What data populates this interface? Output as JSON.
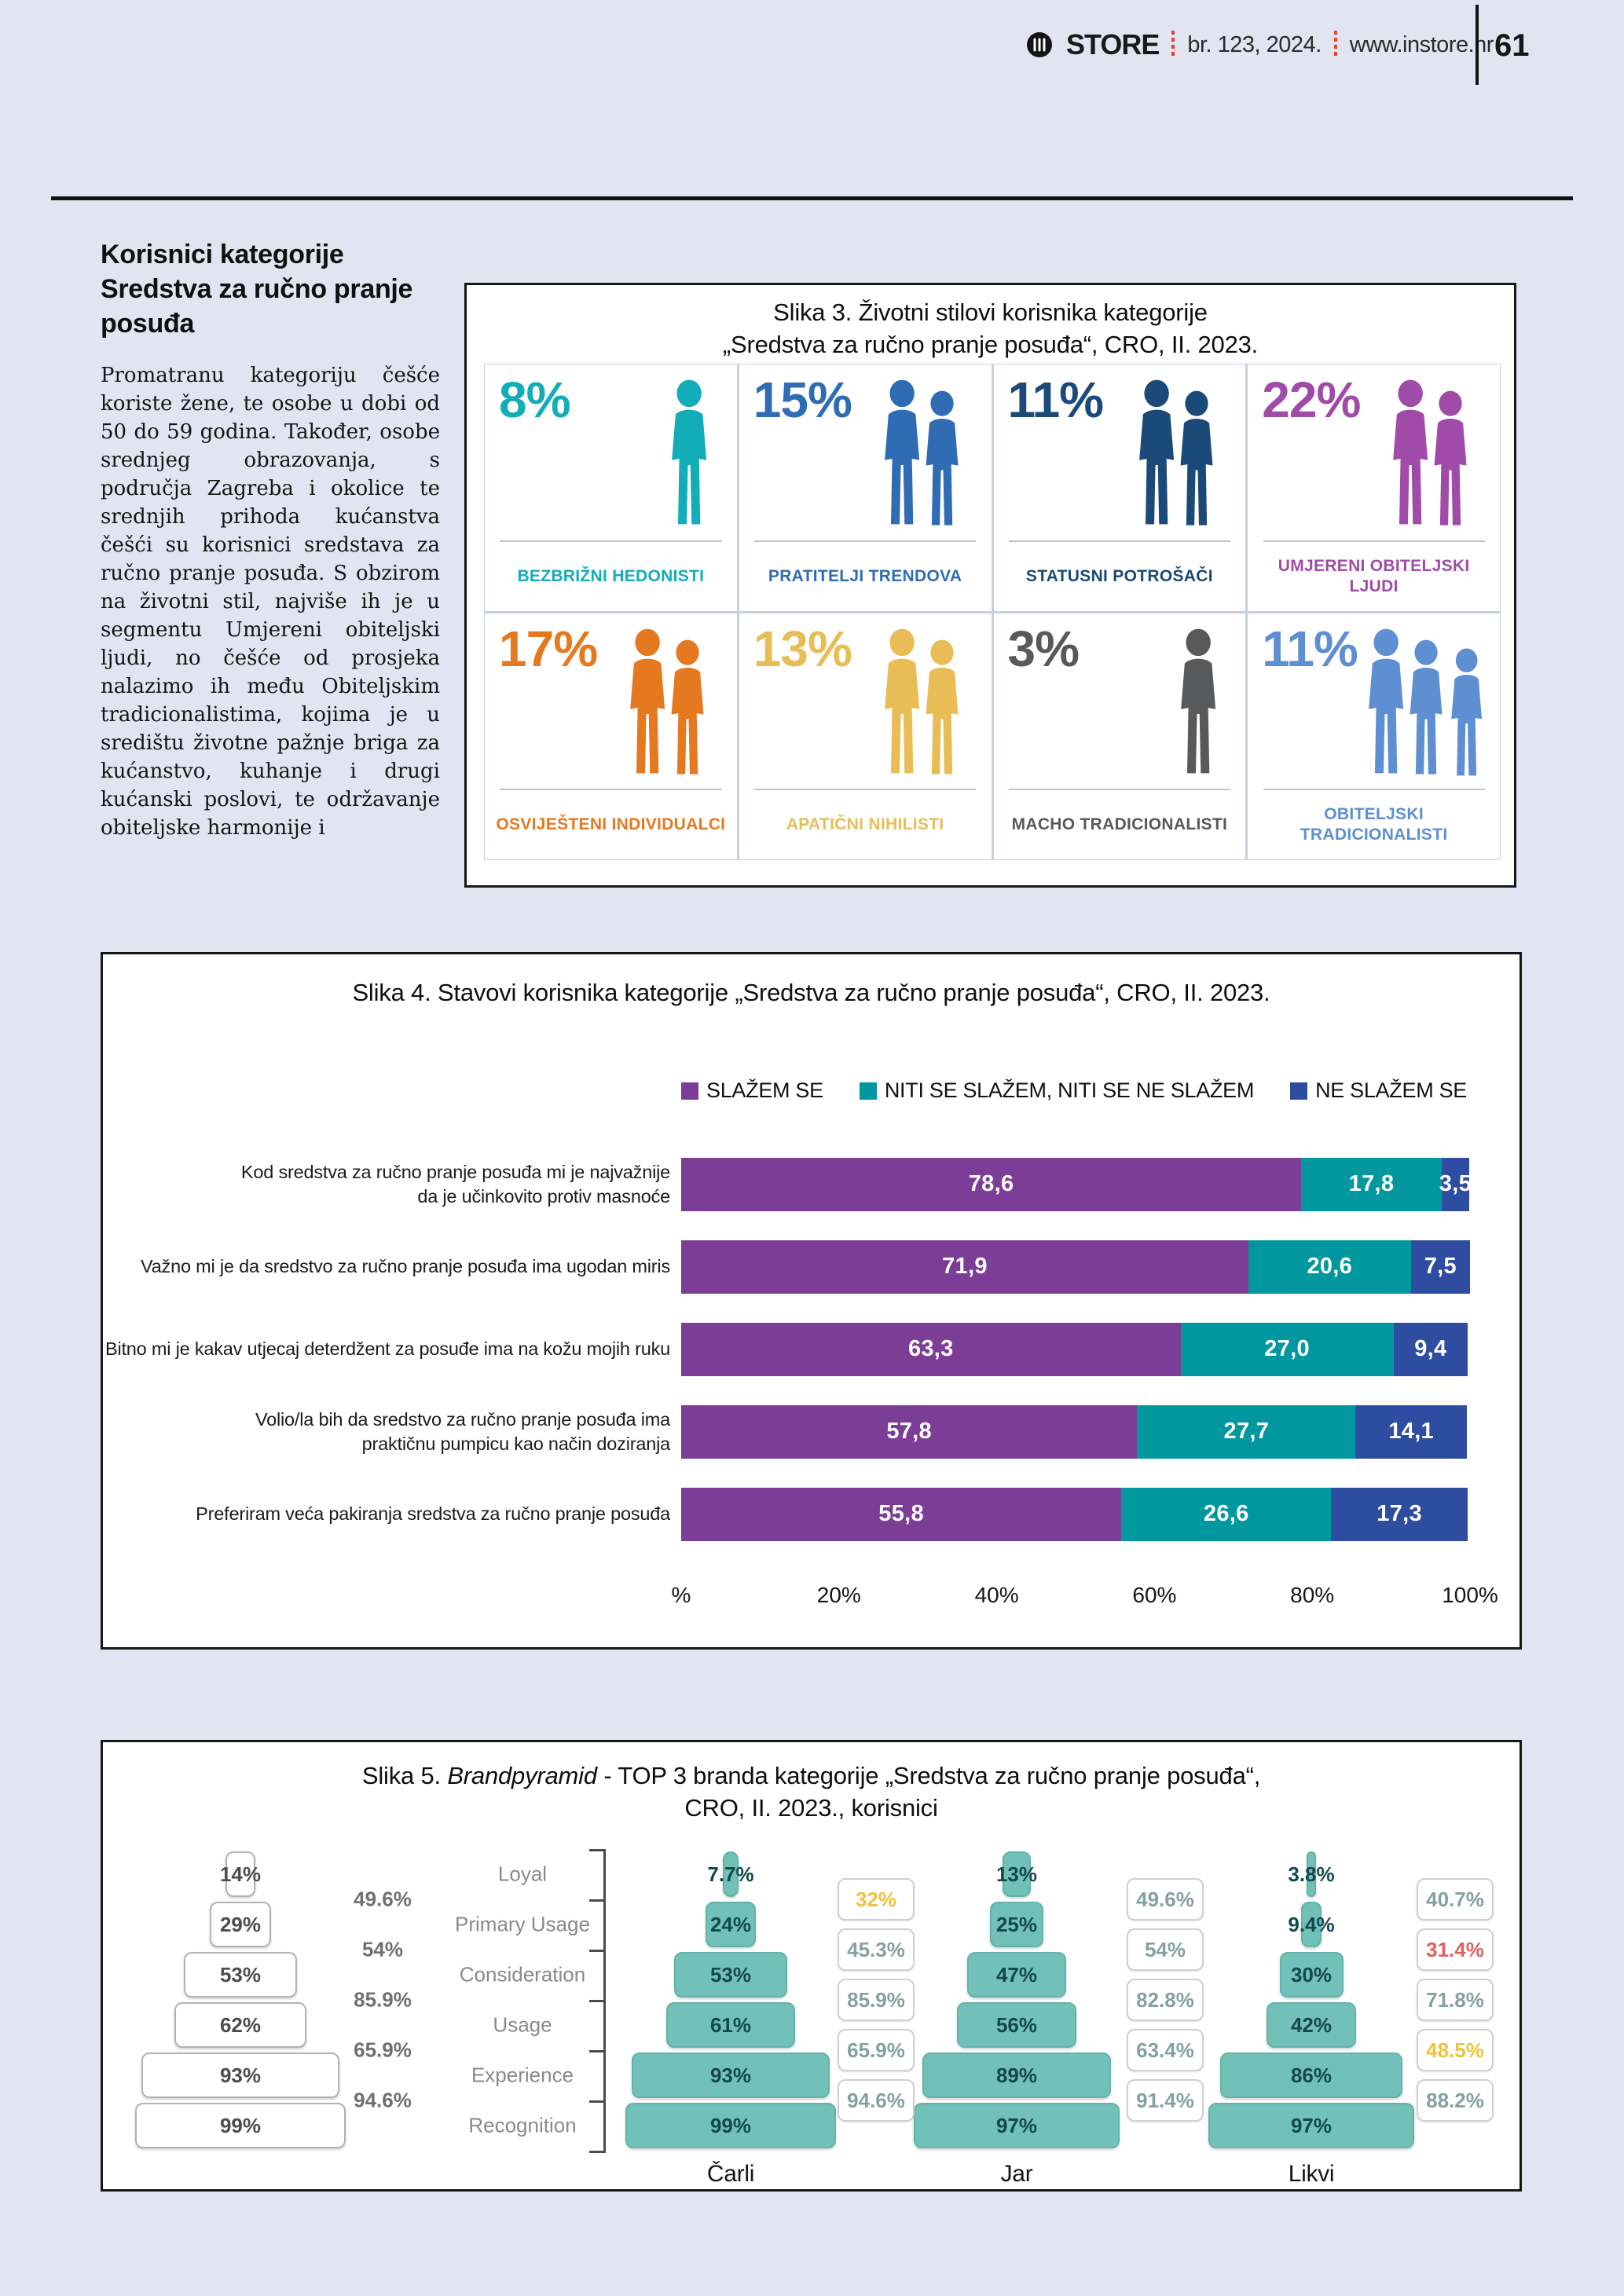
{
  "header": {
    "brand": "STORE",
    "issue": "br. 123, 2024.",
    "site": "www.instore.hr",
    "page_number": "61"
  },
  "article": {
    "title": "Korisnici kategorije Sredstva za ručno pranje posuđa",
    "body": "Promatranu kategoriju češće koriste žene, te osobe u dobi od 50 do 59 godina. Također, osobe srednjeg obrazovanja, s područja Zagreba i okolice te srednjih prihoda kućanstva češći su korisnici sredstava za ručno pranje posuđa. S obzirom na životni stil, najviše ih je u segmentu Umjereni obiteljski ljudi, no češće od prosjeka nalazimo ih među Obiteljskim tradicionalistima, kojima je u središtu životne pažnje briga za kućanstvo, kuhanje i drugi kućanski poslovi, te održavanje obiteljske harmonije i"
  },
  "chart_data": [
    {
      "type": "pictogram-grid",
      "title_line1": "Slika 3. Životni stilovi korisnika kategorije",
      "title_line2": "„Sredstva za ručno pranje posuđa“, CRO, II. 2023.",
      "segments": [
        {
          "label": "BEZBRIŽNI HEDONISTI",
          "value_pct": 8,
          "color": "#12adb7",
          "figures": 1
        },
        {
          "label": "PRATITELJI TRENDOVA",
          "value_pct": 15,
          "color": "#2f6cb4",
          "figures": 2
        },
        {
          "label": "STATUSNI POTROŠAČI",
          "value_pct": 11,
          "color": "#1b4a78",
          "figures": 2
        },
        {
          "label": "UMJERENI OBITELJSKI LJUDI",
          "value_pct": 22,
          "color": "#a04ba8",
          "figures": 2
        },
        {
          "label": "OSVIJEŠTENI INDIVIDUALCI",
          "value_pct": 17,
          "color": "#e5791f",
          "figures": 2
        },
        {
          "label": "APATIČNI NIHILISTI",
          "value_pct": 13,
          "color": "#e9bd55",
          "figures": 2
        },
        {
          "label": "MACHO TRADICIONALISTI",
          "value_pct": 3,
          "color": "#58595b",
          "figures": 1
        },
        {
          "label": "OBITELJSKI TRADICIONALISTI",
          "value_pct": 11,
          "color": "#5d8fd2",
          "figures": 3
        }
      ]
    },
    {
      "type": "bar",
      "stacked": true,
      "title": "Slika 4. Stavovi korisnika kategorije „Sredstva za ručno pranje posuđa“, CRO, II. 2023.",
      "legend": [
        "SLAŽEM SE",
        "NITI SE SLAŽEM, NITI SE NE SLAŽEM",
        "NE SLAŽEM SE"
      ],
      "series_colors": [
        "#7c3d96",
        "#00989e",
        "#2f4da0"
      ],
      "categories": [
        "Kod sredstva za ručno pranje posuđa mi je najvažnije\nda je učinkovito protiv masnoće",
        "Važno mi je da sredstvo za ručno pranje posuđa ima ugodan miris",
        "Bitno mi je kakav utjecaj deterdžent za posuđe ima na kožu mojih ruku",
        "Volio/la bih da sredstvo za ručno pranje posuđa ima\npraktičnu pumpicu kao način doziranja",
        "Preferiram veća pakiranja sredstva za ručno pranje posuđa"
      ],
      "series": [
        {
          "name": "SLAŽEM SE",
          "values": [
            78.6,
            71.9,
            63.3,
            57.8,
            55.8
          ]
        },
        {
          "name": "NITI SE SLAŽEM, NITI SE NE SLAŽEM",
          "values": [
            17.8,
            20.6,
            27.0,
            27.7,
            26.6
          ]
        },
        {
          "name": "NE SLAŽEM SE",
          "values": [
            3.5,
            7.5,
            9.4,
            14.1,
            17.3
          ]
        }
      ],
      "xlabel_ticks": [
        "%",
        "20%",
        "40%",
        "60%",
        "80%",
        "100%"
      ],
      "xlim": [
        0,
        100
      ],
      "value_decimal_separator": ","
    },
    {
      "type": "pyramid",
      "title_prefix": "Slika 5. ",
      "title_italic": "Brandpyramid",
      "title_rest": " - TOP 3 branda kategorije „Sredstva za ručno pranje posuđa“,",
      "title_line2": "CRO, II. 2023., korisnici",
      "stages": [
        "Loyal",
        "Primary Usage",
        "Consideration",
        "Usage",
        "Experience",
        "Recognition"
      ],
      "reference": {
        "values": [
          "14%",
          "29%",
          "53%",
          "62%",
          "93%",
          "99%"
        ],
        "conversions": [
          "49.6%",
          "54%",
          "85.9%",
          "65.9%",
          "94.6%"
        ]
      },
      "brands": [
        {
          "name": "Čarli",
          "values": [
            "7.7%",
            "24%",
            "53%",
            "61%",
            "93%",
            "99%"
          ]
        },
        {
          "name": "Jar",
          "values": [
            "13%",
            "25%",
            "47%",
            "56%",
            "89%",
            "97%"
          ]
        },
        {
          "name": "Likvi",
          "values": [
            "3.8%",
            "9.4%",
            "30%",
            "42%",
            "86%",
            "97%"
          ]
        }
      ],
      "conversion_columns": [
        {
          "values": [
            "32%",
            "45.3%",
            "85.9%",
            "65.9%",
            "94.6%"
          ],
          "highlights": {
            "0": "yellow"
          }
        },
        {
          "values": [
            "49.6%",
            "54%",
            "82.8%",
            "63.4%",
            "91.4%"
          ],
          "highlights": {}
        },
        {
          "values": [
            "40.7%",
            "31.4%",
            "71.8%",
            "48.5%",
            "88.2%"
          ],
          "highlights": {
            "1": "red",
            "3": "yellow"
          }
        }
      ],
      "highlight_colors": {
        "yellow": "#efc23c",
        "red": "#e06060",
        "normal": "#84a1a1"
      },
      "brand_color": "#72c1b8"
    }
  ]
}
